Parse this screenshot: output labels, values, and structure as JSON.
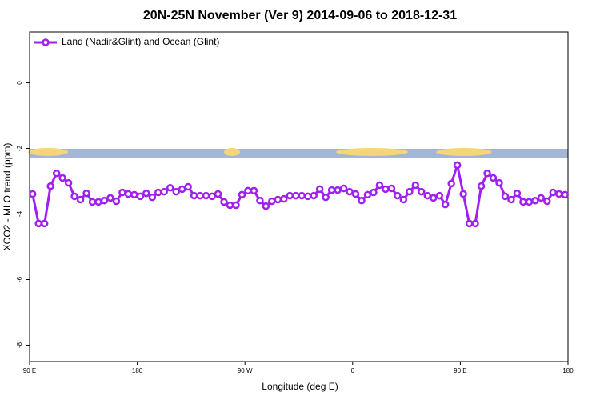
{
  "chart_data": {
    "type": "line",
    "title": "20N-25N November (Ver 9)   2014-09-06 to 2018-12-31",
    "x_label": "Longitude (deg E)",
    "y_label": "XCO2 - MLO trend (ppm)",
    "x": [
      92.5,
      97.5,
      102.5,
      107.5,
      112.5,
      117.5,
      122.5,
      127.5,
      132.5,
      137.5,
      142.5,
      147.5,
      152.5,
      157.5,
      162.5,
      167.5,
      172.5,
      177.5,
      182.5,
      187.5,
      192.5,
      197.5,
      202.5,
      207.5,
      212.5,
      217.5,
      222.5,
      227.5,
      232.5,
      237.5,
      242.5,
      247.5,
      252.5,
      257.5,
      262.5,
      267.5,
      272.5,
      277.5,
      282.5,
      287.5,
      292.5,
      297.5,
      302.5,
      307.5,
      312.5,
      317.5,
      322.5,
      327.5,
      332.5,
      337.5,
      342.5,
      347.5,
      352.5,
      357.5,
      362.5,
      367.5,
      372.5,
      377.5,
      382.5,
      387.5,
      392.5,
      397.5,
      402.5,
      407.5,
      412.5,
      417.5,
      422.5,
      427.5,
      432.5,
      437.5,
      442.5,
      447.5,
      452.5,
      457.5,
      462.5,
      467.5,
      472.5,
      477.5,
      482.5,
      487.5,
      492.5,
      497.5,
      502.5,
      507.5,
      512.5,
      517.5,
      522.5,
      527.5,
      532.5,
      537.5
    ],
    "series": [
      {
        "name": "Land (Nadir&Glint) and Ocean (Glint)",
        "color": "#a020f0",
        "values": [
          -3.39,
          -4.29,
          -4.29,
          -3.15,
          -2.76,
          -2.9,
          -3.05,
          -3.46,
          -3.56,
          -3.37,
          -3.63,
          -3.63,
          -3.59,
          -3.51,
          -3.61,
          -3.34,
          -3.39,
          -3.41,
          -3.46,
          -3.37,
          -3.49,
          -3.34,
          -3.32,
          -3.2,
          -3.32,
          -3.24,
          -3.17,
          -3.44,
          -3.44,
          -3.44,
          -3.46,
          -3.39,
          -3.63,
          -3.73,
          -3.73,
          -3.41,
          -3.29,
          -3.29,
          -3.59,
          -3.76,
          -3.61,
          -3.56,
          -3.54,
          -3.44,
          -3.44,
          -3.44,
          -3.46,
          -3.44,
          -3.24,
          -3.49,
          -3.27,
          -3.27,
          -3.22,
          -3.32,
          -3.39,
          -3.59,
          -3.41,
          -3.34,
          -3.12,
          -3.24,
          -3.22,
          -3.44,
          -3.56,
          -3.32,
          -3.12,
          -3.32,
          -3.44,
          -3.51,
          -3.44,
          -3.71,
          -3.07,
          -2.51,
          -3.39,
          -4.29,
          -4.29,
          -3.15,
          -2.76,
          -2.9,
          -3.05,
          -3.46,
          -3.56,
          -3.37,
          -3.63,
          -3.63,
          -3.59,
          -3.51,
          -3.61,
          -3.34,
          -3.39,
          -3.41
        ]
      }
    ],
    "xlim": [
      90,
      540
    ],
    "xticks": [
      {
        "value": 90,
        "label": "90 E"
      },
      {
        "value": 180,
        "label": "180"
      },
      {
        "value": 270,
        "label": "90 W"
      },
      {
        "value": 360,
        "label": "0"
      },
      {
        "value": 450,
        "label": "90 E"
      },
      {
        "value": 540,
        "label": "180"
      }
    ],
    "ylim": [
      -8.5,
      1.55
    ],
    "yticks": [
      0,
      -2,
      -4,
      -6,
      -8
    ],
    "legend": "top-left"
  }
}
